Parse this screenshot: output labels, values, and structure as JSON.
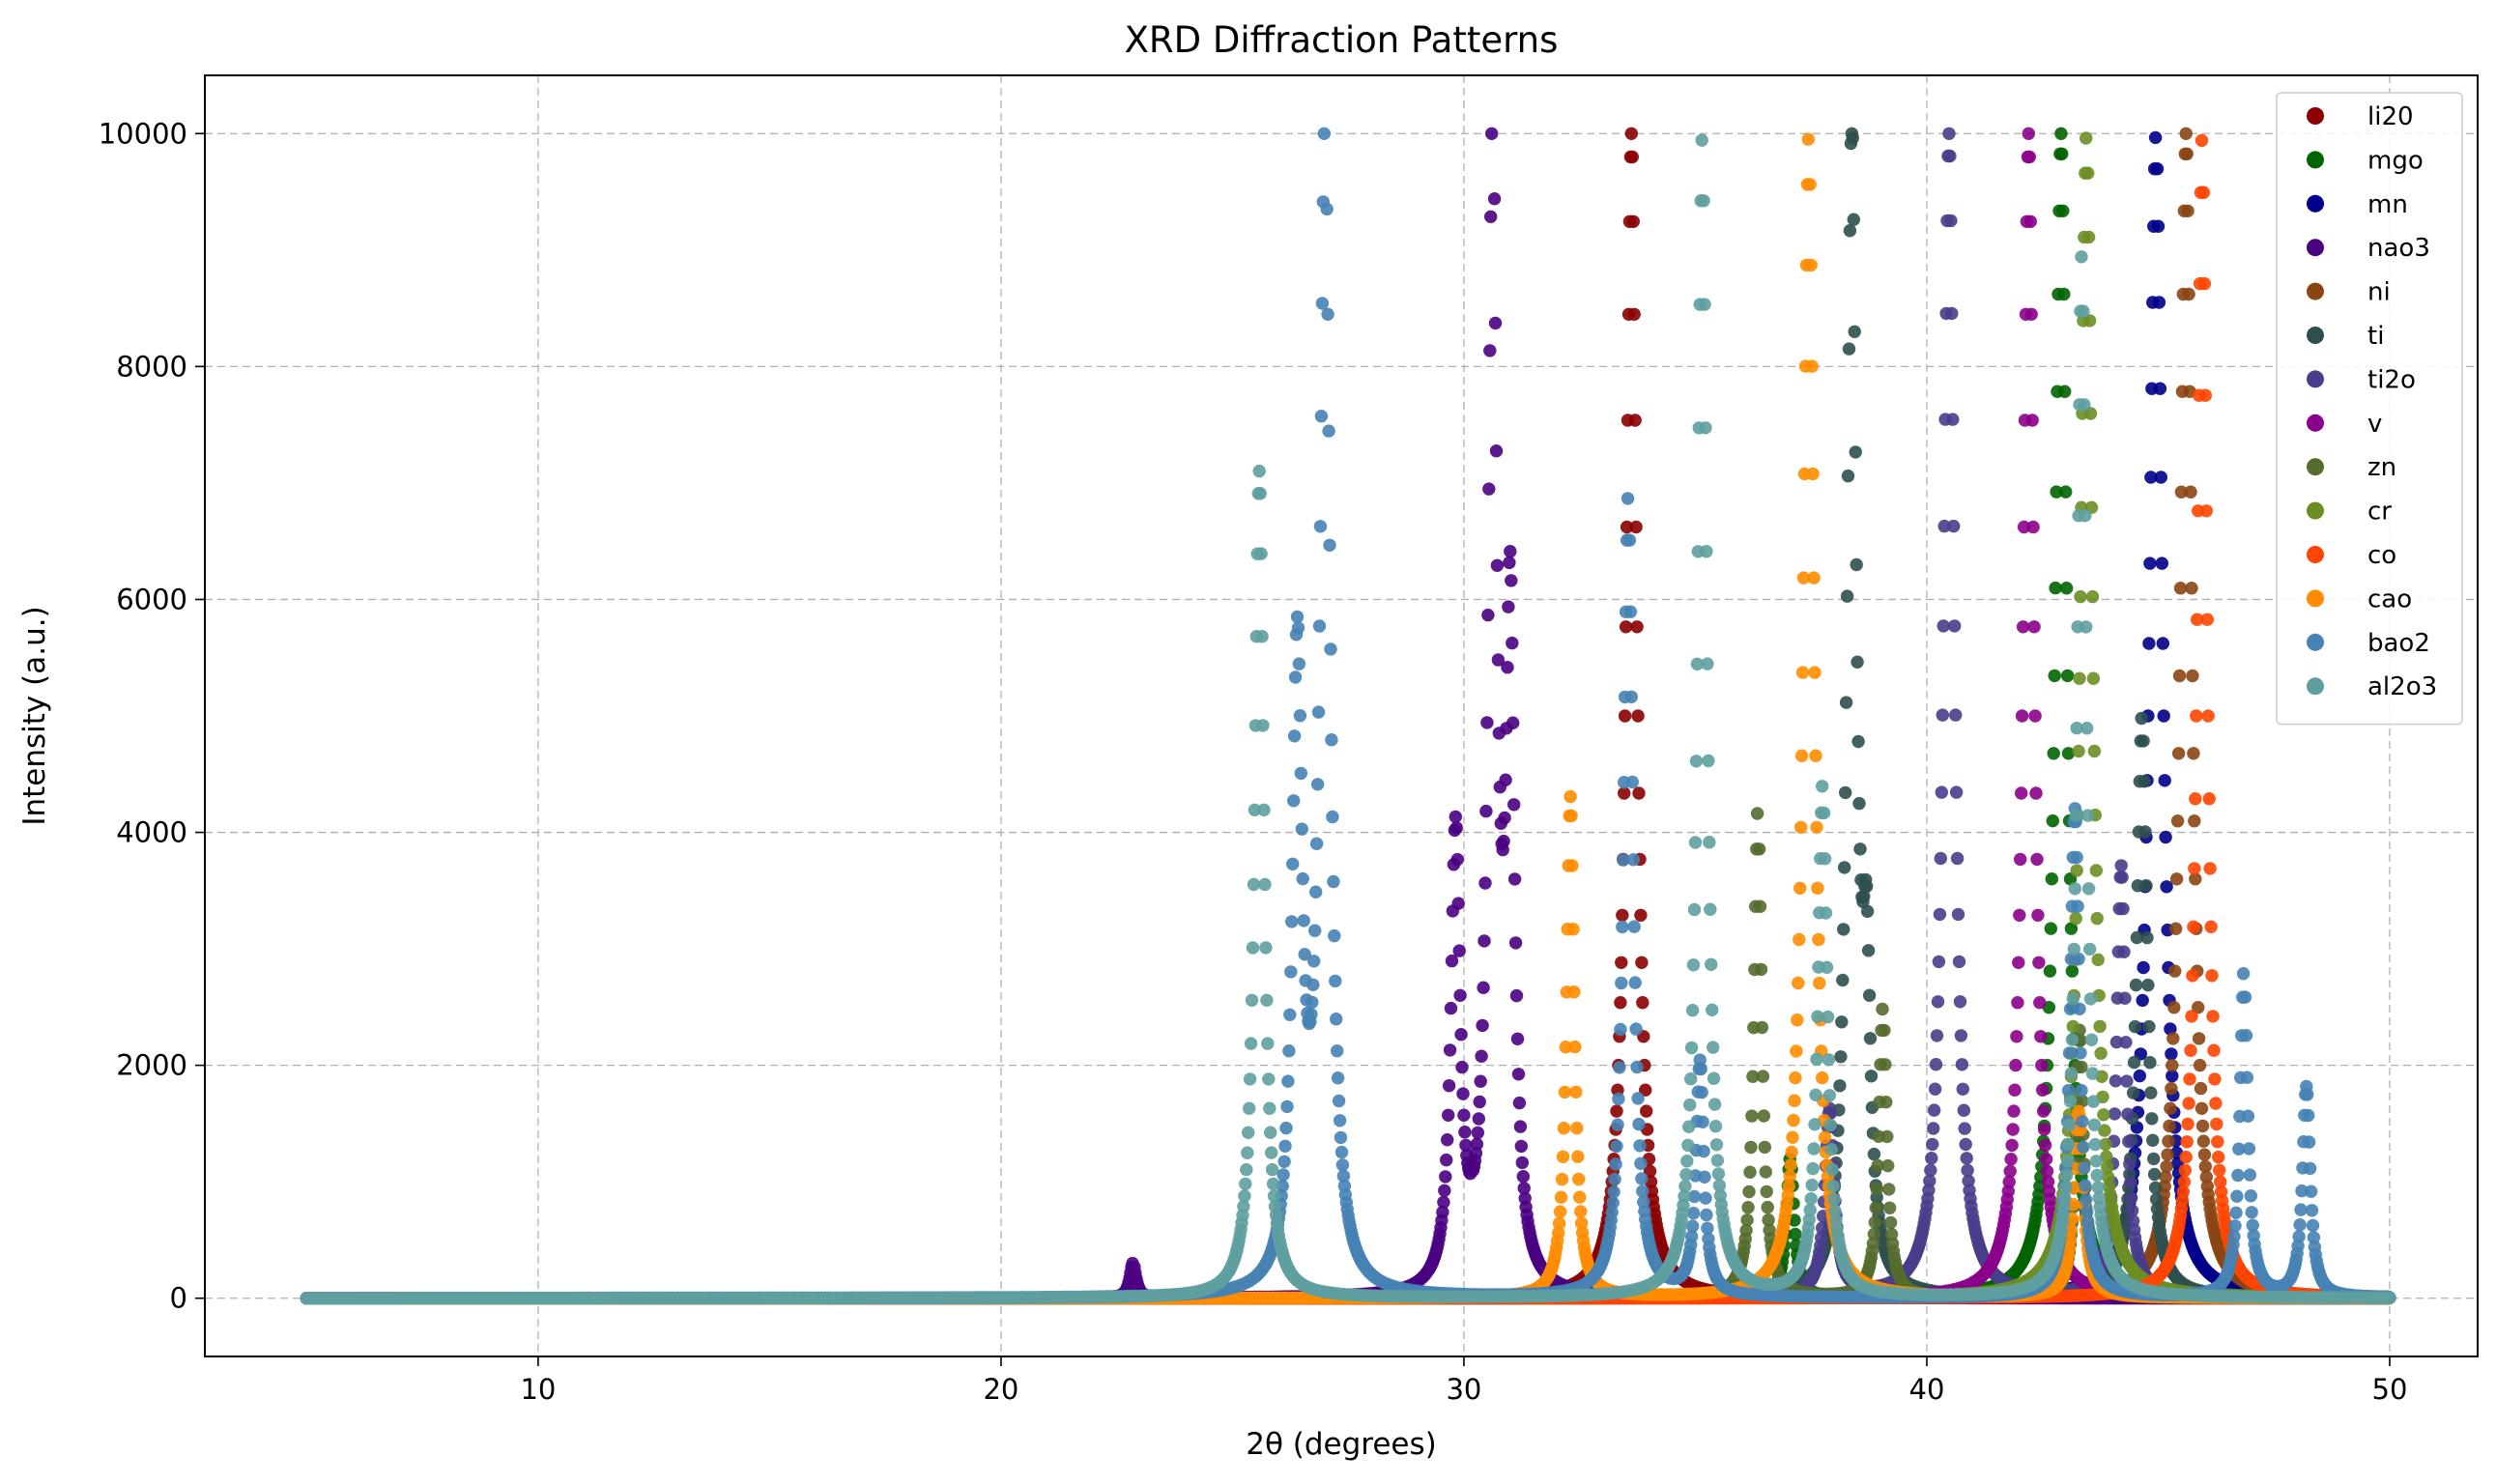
{
  "chart_data": {
    "type": "scatter",
    "title": "XRD Diffraction Patterns",
    "xlabel": "2θ (degrees)",
    "ylabel": "Intensity (a.u.)",
    "xlim": [
      2.8,
      51.9
    ],
    "ylim": [
      -500,
      10500
    ],
    "xticks": [
      10,
      20,
      30,
      40,
      50
    ],
    "yticks": [
      0,
      2000,
      4000,
      6000,
      8000,
      10000
    ],
    "grid": true,
    "legend_position": "top-right",
    "x_range": [
      5,
      50
    ],
    "series": [
      {
        "name": "li20",
        "color": "#8b0000",
        "peaks": [
          [
            33.62,
            10000,
            0.14
          ]
        ]
      },
      {
        "name": "mgo",
        "color": "#006400",
        "peaks": [
          [
            42.9,
            10000,
            0.15
          ],
          [
            37.05,
            1200,
            0.1
          ]
        ]
      },
      {
        "name": "mn",
        "color": "#00008b",
        "peaks": [
          [
            44.95,
            10000,
            0.17
          ]
        ]
      },
      {
        "name": "nao3",
        "color": "#4b0082",
        "peaks": [
          [
            30.62,
            10000,
            0.11
          ],
          [
            29.82,
            3900,
            0.12
          ],
          [
            31.0,
            5600,
            0.11
          ],
          [
            22.85,
            300,
            0.08
          ]
        ]
      },
      {
        "name": "ni",
        "color": "#8b4513",
        "peaks": [
          [
            45.6,
            10000,
            0.15
          ]
        ]
      },
      {
        "name": "ti",
        "color": "#2f4f4f",
        "peaks": [
          [
            38.38,
            10000,
            0.12
          ],
          [
            44.65,
            5000,
            0.14
          ],
          [
            38.7,
            2300,
            0.1
          ]
        ]
      },
      {
        "name": "ti2o",
        "color": "#483d8b",
        "peaks": [
          [
            40.48,
            10000,
            0.14
          ],
          [
            37.9,
            1600,
            0.12
          ],
          [
            44.2,
            3700,
            0.12
          ]
        ]
      },
      {
        "name": "v",
        "color": "#8b008b",
        "peaks": [
          [
            42.2,
            10000,
            0.14
          ]
        ]
      },
      {
        "name": "zn",
        "color": "#556b2f",
        "peaks": [
          [
            36.35,
            4200,
            0.1
          ],
          [
            39.05,
            2500,
            0.1
          ],
          [
            43.3,
            2300,
            0.1
          ]
        ]
      },
      {
        "name": "cr",
        "color": "#6b8e23",
        "peaks": [
          [
            43.45,
            10000,
            0.16
          ]
        ]
      },
      {
        "name": "co",
        "color": "#ff4500",
        "peaks": [
          [
            45.95,
            10000,
            0.13
          ]
        ]
      },
      {
        "name": "cao",
        "color": "#ff8c00",
        "peaks": [
          [
            37.45,
            10000,
            0.14
          ],
          [
            32.3,
            4300,
            0.1
          ],
          [
            43.28,
            1600,
            0.12
          ]
        ]
      },
      {
        "name": "bao2",
        "color": "#4682b4",
        "peaks": [
          [
            27.0,
            10000,
            0.13
          ],
          [
            26.4,
            5400,
            0.13
          ],
          [
            33.55,
            6900,
            0.12
          ],
          [
            46.85,
            2800,
            0.1
          ],
          [
            48.2,
            1800,
            0.1
          ],
          [
            43.2,
            4200,
            0.12
          ],
          [
            35.1,
            2000,
            0.1
          ]
        ]
      },
      {
        "name": "al2o3",
        "color": "#5f9ea0",
        "peaks": [
          [
            25.58,
            7100,
            0.12
          ],
          [
            35.15,
            10000,
            0.12
          ],
          [
            37.75,
            4400,
            0.12
          ],
          [
            43.35,
            9000,
            0.12
          ]
        ]
      }
    ]
  }
}
